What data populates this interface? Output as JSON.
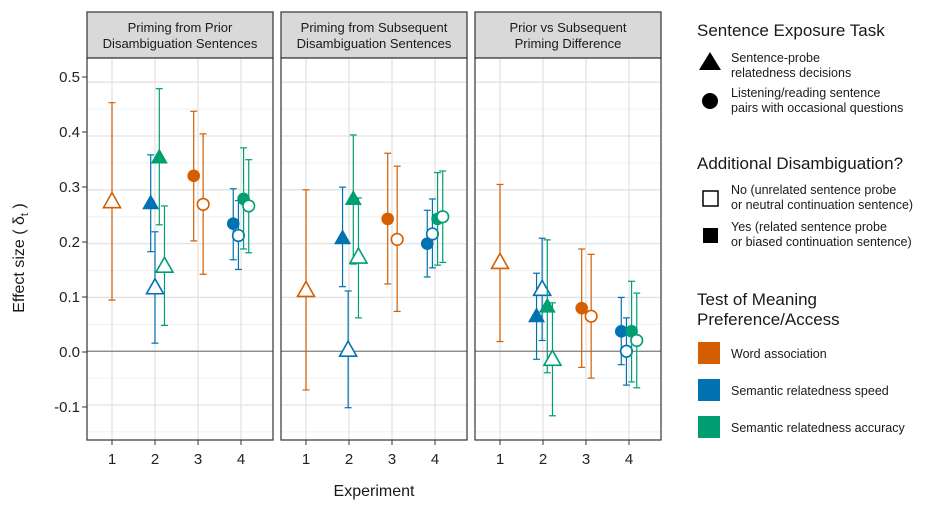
{
  "chart_data": {
    "type": "scatter",
    "ylabel": "Effect size ( δ",
    "ylabel_sub": "t",
    "ylabel_close": " )",
    "xlabel": "Experiment",
    "x_categories": [
      "1",
      "2",
      "3",
      "4"
    ],
    "ylim": [
      -0.165,
      0.545
    ],
    "y_ticks": [
      "0.5",
      "0.4",
      "0.3",
      "0.2",
      "0.1",
      "0.0",
      "-0.1"
    ],
    "y_tick_values": [
      0.5,
      0.4,
      0.3,
      0.2,
      0.1,
      0.0,
      -0.1
    ],
    "grid": true,
    "legend_position": "right",
    "colors": {
      "word": "#D55E00",
      "speed": "#0072B2",
      "accuracy": "#009E73"
    },
    "panels": [
      {
        "title_line1": "Priming from Prior",
        "title_line2": "Disambiguation Sentences",
        "points": [
          {
            "exp": 1,
            "offset": 0.0,
            "measure": "word",
            "shape": "triangle",
            "filled": false,
            "y": 0.278,
            "lo": 0.095,
            "hi": 0.462
          },
          {
            "exp": 2,
            "offset": -0.1,
            "measure": "speed",
            "shape": "triangle",
            "filled": true,
            "y": 0.275,
            "lo": 0.185,
            "hi": 0.365
          },
          {
            "exp": 2,
            "offset": 0.0,
            "measure": "speed",
            "shape": "triangle",
            "filled": false,
            "y": 0.118,
            "lo": 0.015,
            "hi": 0.222
          },
          {
            "exp": 2,
            "offset": 0.1,
            "measure": "accuracy",
            "shape": "triangle",
            "filled": true,
            "y": 0.36,
            "lo": 0.235,
            "hi": 0.488
          },
          {
            "exp": 2,
            "offset": 0.22,
            "measure": "accuracy",
            "shape": "triangle",
            "filled": false,
            "y": 0.158,
            "lo": 0.048,
            "hi": 0.27
          },
          {
            "exp": 3,
            "offset": -0.1,
            "measure": "word",
            "shape": "circle",
            "filled": true,
            "y": 0.326,
            "lo": 0.205,
            "hi": 0.446
          },
          {
            "exp": 3,
            "offset": 0.12,
            "measure": "word",
            "shape": "circle",
            "filled": false,
            "y": 0.273,
            "lo": 0.143,
            "hi": 0.404
          },
          {
            "exp": 4,
            "offset": -0.18,
            "measure": "speed",
            "shape": "circle",
            "filled": true,
            "y": 0.237,
            "lo": 0.17,
            "hi": 0.302
          },
          {
            "exp": 4,
            "offset": -0.06,
            "measure": "speed",
            "shape": "circle",
            "filled": false,
            "y": 0.215,
            "lo": 0.152,
            "hi": 0.28
          },
          {
            "exp": 4,
            "offset": 0.06,
            "measure": "accuracy",
            "shape": "circle",
            "filled": true,
            "y": 0.283,
            "lo": 0.19,
            "hi": 0.378
          },
          {
            "exp": 4,
            "offset": 0.18,
            "measure": "accuracy",
            "shape": "circle",
            "filled": false,
            "y": 0.27,
            "lo": 0.183,
            "hi": 0.356
          }
        ]
      },
      {
        "title_line1": "Priming from Subsequent",
        "title_line2": "Disambiguation Sentences",
        "points": [
          {
            "exp": 1,
            "offset": 0.0,
            "measure": "word",
            "shape": "triangle",
            "filled": false,
            "y": 0.113,
            "lo": -0.072,
            "hi": 0.3
          },
          {
            "exp": 2,
            "offset": -0.15,
            "measure": "speed",
            "shape": "triangle",
            "filled": true,
            "y": 0.21,
            "lo": 0.12,
            "hi": 0.305
          },
          {
            "exp": 2,
            "offset": -0.02,
            "measure": "speed",
            "shape": "triangle",
            "filled": false,
            "y": 0.002,
            "lo": -0.105,
            "hi": 0.112
          },
          {
            "exp": 2,
            "offset": 0.1,
            "measure": "accuracy",
            "shape": "triangle",
            "filled": true,
            "y": 0.283,
            "lo": 0.162,
            "hi": 0.402
          },
          {
            "exp": 2,
            "offset": 0.22,
            "measure": "accuracy",
            "shape": "triangle",
            "filled": false,
            "y": 0.175,
            "lo": 0.062,
            "hi": 0.285
          },
          {
            "exp": 3,
            "offset": -0.1,
            "measure": "word",
            "shape": "circle",
            "filled": true,
            "y": 0.246,
            "lo": 0.125,
            "hi": 0.368
          },
          {
            "exp": 3,
            "offset": 0.12,
            "measure": "word",
            "shape": "circle",
            "filled": false,
            "y": 0.208,
            "lo": 0.074,
            "hi": 0.344
          },
          {
            "exp": 4,
            "offset": -0.18,
            "measure": "speed",
            "shape": "circle",
            "filled": true,
            "y": 0.2,
            "lo": 0.138,
            "hi": 0.262
          },
          {
            "exp": 4,
            "offset": -0.06,
            "measure": "speed",
            "shape": "circle",
            "filled": false,
            "y": 0.218,
            "lo": 0.155,
            "hi": 0.283
          },
          {
            "exp": 4,
            "offset": 0.06,
            "measure": "accuracy",
            "shape": "circle",
            "filled": true,
            "y": 0.246,
            "lo": 0.16,
            "hi": 0.332
          },
          {
            "exp": 4,
            "offset": 0.18,
            "measure": "accuracy",
            "shape": "circle",
            "filled": false,
            "y": 0.25,
            "lo": 0.165,
            "hi": 0.335
          }
        ]
      },
      {
        "title_line1": "Prior vs Subsequent",
        "title_line2": "Priming Difference",
        "points": [
          {
            "exp": 1,
            "offset": 0.0,
            "measure": "word",
            "shape": "triangle",
            "filled": false,
            "y": 0.165,
            "lo": 0.018,
            "hi": 0.31
          },
          {
            "exp": 2,
            "offset": -0.15,
            "measure": "speed",
            "shape": "triangle",
            "filled": true,
            "y": 0.065,
            "lo": -0.015,
            "hi": 0.145
          },
          {
            "exp": 2,
            "offset": -0.02,
            "measure": "speed",
            "shape": "triangle",
            "filled": false,
            "y": 0.115,
            "lo": 0.02,
            "hi": 0.21
          },
          {
            "exp": 2,
            "offset": 0.1,
            "measure": "accuracy",
            "shape": "triangle",
            "filled": true,
            "y": 0.083,
            "lo": -0.04,
            "hi": 0.207
          },
          {
            "exp": 2,
            "offset": 0.22,
            "measure": "accuracy",
            "shape": "triangle",
            "filled": false,
            "y": -0.015,
            "lo": -0.12,
            "hi": 0.09
          },
          {
            "exp": 3,
            "offset": -0.1,
            "measure": "word",
            "shape": "circle",
            "filled": true,
            "y": 0.08,
            "lo": -0.03,
            "hi": 0.19
          },
          {
            "exp": 3,
            "offset": 0.12,
            "measure": "word",
            "shape": "circle",
            "filled": false,
            "y": 0.065,
            "lo": -0.05,
            "hi": 0.18
          },
          {
            "exp": 4,
            "offset": -0.18,
            "measure": "speed",
            "shape": "circle",
            "filled": true,
            "y": 0.037,
            "lo": -0.025,
            "hi": 0.1
          },
          {
            "exp": 4,
            "offset": -0.06,
            "measure": "speed",
            "shape": "circle",
            "filled": false,
            "y": 0.0,
            "lo": -0.063,
            "hi": 0.062
          },
          {
            "exp": 4,
            "offset": 0.06,
            "measure": "accuracy",
            "shape": "circle",
            "filled": true,
            "y": 0.037,
            "lo": -0.057,
            "hi": 0.13
          },
          {
            "exp": 4,
            "offset": 0.18,
            "measure": "accuracy",
            "shape": "circle",
            "filled": false,
            "y": 0.02,
            "lo": -0.068,
            "hi": 0.108
          }
        ]
      }
    ],
    "legend": {
      "task_title": "Sentence Exposure Task",
      "task_items": [
        {
          "shape": "triangle",
          "line1": "Sentence-probe",
          "line2": "relatedness decisions"
        },
        {
          "shape": "circle",
          "line1": "Listening/reading sentence",
          "line2": "pairs with occasional questions"
        }
      ],
      "disamb_title": "Additional Disambiguation?",
      "disamb_items": [
        {
          "filled": false,
          "line1": "No (unrelated sentence probe",
          "line2": "or neutral continuation sentence)"
        },
        {
          "filled": true,
          "line1": "Yes (related sentence probe",
          "line2": "or biased continuation sentence)"
        }
      ],
      "test_title_line1": "Test of Meaning",
      "test_title_line2": "Preference/Access",
      "test_items": [
        {
          "measure": "word",
          "label": "Word association"
        },
        {
          "measure": "speed",
          "label": "Semantic relatedness speed"
        },
        {
          "measure": "accuracy",
          "label": "Semantic relatedness accuracy"
        }
      ]
    }
  }
}
